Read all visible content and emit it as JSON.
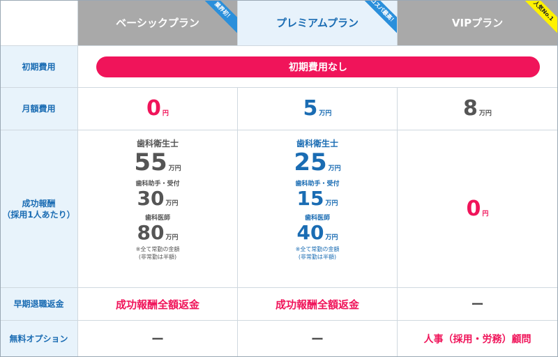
{
  "plans": {
    "basic": {
      "name": "ベーシックプラン",
      "ribbon": "業界初！"
    },
    "premium": {
      "name": "プレミアムプラン",
      "ribbon": "コスパ最高！"
    },
    "vip": {
      "name": "VIPプラン",
      "ribbon": "人気No.1"
    }
  },
  "rows": {
    "initial": {
      "label": "初期費用",
      "value": "初期費用なし"
    },
    "monthly": {
      "label": "月額費用",
      "basic": {
        "amount": "0",
        "unit": "円"
      },
      "premium": {
        "amount": "5",
        "unit": "万円"
      },
      "vip": {
        "amount": "8",
        "unit": "万円"
      }
    },
    "success": {
      "label_line1": "成功報酬",
      "label_line2": "（採用1人あたり）",
      "basic": {
        "hygienist_label": "歯科衛生士",
        "hygienist_amount": "55",
        "hygienist_unit": "万円",
        "assistant_label": "歯科助手・受付",
        "assistant_amount": "30",
        "assistant_unit": "万円",
        "dentist_label": "歯科医師",
        "dentist_amount": "80",
        "dentist_unit": "万円",
        "note1": "※全て常勤の金額",
        "note2": "(非常勤は半額)"
      },
      "premium": {
        "hygienist_label": "歯科衛生士",
        "hygienist_amount": "25",
        "hygienist_unit": "万円",
        "assistant_label": "歯科助手・受付",
        "assistant_amount": "15",
        "assistant_unit": "万円",
        "dentist_label": "歯科医師",
        "dentist_amount": "40",
        "dentist_unit": "万円",
        "note1": "※全て常勤の金額",
        "note2": "(非常勤は半額)"
      },
      "vip": {
        "amount": "0",
        "unit": "円"
      }
    },
    "refund": {
      "label": "早期退職返金",
      "basic": "成功報酬全額返金",
      "premium": "成功報酬全額返金",
      "vip": "ー"
    },
    "options": {
      "label": "無料オプション",
      "basic": "ー",
      "premium": "ー",
      "vip": "人事（採用・労務）顧問"
    }
  }
}
